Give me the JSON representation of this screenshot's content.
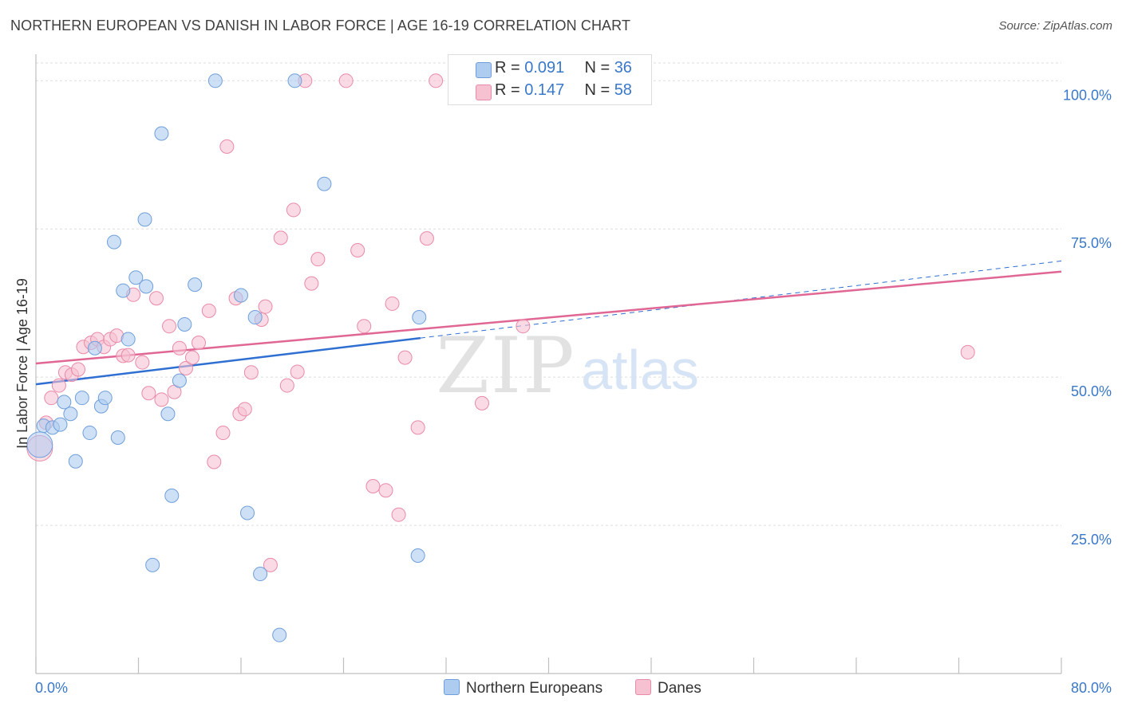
{
  "title": "NORTHERN EUROPEAN VS DANISH IN LABOR FORCE | AGE 16-19 CORRELATION CHART",
  "source": "Source: ZipAtlas.com",
  "watermark": {
    "zip": "ZIP",
    "atlas": "atlas"
  },
  "legend_stats": {
    "r_label": "R =",
    "n_label": "N =",
    "series": [
      {
        "name": "Northern Europeans",
        "r": "0.091",
        "n": "36"
      },
      {
        "name": "Danes",
        "r": "0.147",
        "n": "58"
      }
    ]
  },
  "colors": {
    "blue_fill": "#aecbf0",
    "blue_stroke": "#6f9fda",
    "blue_line": "#2f6fd1",
    "pink_fill": "#f6c2d2",
    "pink_stroke": "#e98aa8",
    "pink_line": "#e06694",
    "tick_label": "#3a78c9",
    "grid": "#dddddd"
  },
  "chart_data": {
    "type": "scatter",
    "xlabel": "",
    "ylabel": "In Labor Force | Age 16-19",
    "xlim": [
      0,
      80
    ],
    "ylim": [
      0,
      103
    ],
    "x_tick_labels": [
      "0.0%",
      "80.0%"
    ],
    "y_ticks": [
      25,
      50,
      75,
      100
    ],
    "y_tick_labels": [
      "25.0%",
      "50.0%",
      "75.0%",
      "100.0%"
    ],
    "series": [
      {
        "name": "Northern Europeans",
        "points": [
          [
            0.6,
            41.8
          ],
          [
            1.3,
            41.5
          ],
          [
            1.9,
            42.0
          ],
          [
            2.2,
            45.8
          ],
          [
            2.7,
            43.8
          ],
          [
            3.1,
            35.8
          ],
          [
            3.6,
            46.5
          ],
          [
            4.2,
            40.6
          ],
          [
            4.6,
            54.9
          ],
          [
            5.1,
            45.1
          ],
          [
            5.4,
            46.5
          ],
          [
            6.1,
            72.8
          ],
          [
            6.4,
            39.8
          ],
          [
            6.8,
            64.6
          ],
          [
            7.2,
            56.4
          ],
          [
            7.8,
            66.8
          ],
          [
            8.5,
            76.6
          ],
          [
            8.6,
            65.3
          ],
          [
            9.1,
            18.3
          ],
          [
            9.8,
            91.1
          ],
          [
            10.3,
            43.8
          ],
          [
            10.6,
            30.0
          ],
          [
            11.2,
            49.4
          ],
          [
            11.6,
            58.9
          ],
          [
            12.4,
            65.6
          ],
          [
            14.0,
            100.0
          ],
          [
            16.0,
            63.8
          ],
          [
            16.5,
            27.1
          ],
          [
            17.1,
            60.1
          ],
          [
            17.5,
            16.8
          ],
          [
            19.0,
            6.5
          ],
          [
            20.2,
            100.0
          ],
          [
            22.5,
            82.6
          ],
          [
            29.8,
            19.9
          ],
          [
            29.9,
            60.1
          ],
          [
            0.3,
            38.6
          ]
        ],
        "trend": {
          "x0": 0,
          "y0": 48.8,
          "x1": 30,
          "y1": 56.6,
          "dash_to_x": 80,
          "dash_to_y": 69.6
        }
      },
      {
        "name": "Danes",
        "points": [
          [
            0.3,
            38.0
          ],
          [
            0.8,
            42.3
          ],
          [
            1.2,
            46.5
          ],
          [
            1.8,
            48.6
          ],
          [
            2.3,
            50.8
          ],
          [
            2.8,
            50.4
          ],
          [
            3.3,
            51.3
          ],
          [
            3.7,
            55.1
          ],
          [
            4.3,
            55.8
          ],
          [
            4.8,
            56.4
          ],
          [
            5.3,
            55.1
          ],
          [
            5.8,
            56.4
          ],
          [
            6.3,
            57.0
          ],
          [
            6.8,
            53.6
          ],
          [
            7.2,
            53.7
          ],
          [
            7.6,
            63.9
          ],
          [
            8.3,
            52.5
          ],
          [
            8.8,
            47.3
          ],
          [
            9.4,
            63.3
          ],
          [
            9.8,
            46.2
          ],
          [
            10.4,
            58.6
          ],
          [
            10.8,
            47.5
          ],
          [
            11.2,
            54.9
          ],
          [
            11.7,
            51.5
          ],
          [
            12.2,
            53.3
          ],
          [
            12.7,
            55.8
          ],
          [
            13.5,
            61.2
          ],
          [
            13.9,
            35.7
          ],
          [
            14.6,
            40.6
          ],
          [
            14.9,
            88.9
          ],
          [
            15.6,
            63.3
          ],
          [
            15.9,
            43.8
          ],
          [
            16.3,
            44.6
          ],
          [
            16.8,
            50.8
          ],
          [
            17.6,
            59.7
          ],
          [
            17.9,
            61.9
          ],
          [
            18.3,
            18.3
          ],
          [
            19.1,
            73.5
          ],
          [
            19.6,
            48.6
          ],
          [
            20.1,
            78.2
          ],
          [
            20.4,
            50.9
          ],
          [
            21.0,
            100.0
          ],
          [
            21.5,
            65.8
          ],
          [
            22.0,
            69.9
          ],
          [
            24.2,
            100.0
          ],
          [
            25.1,
            71.4
          ],
          [
            25.6,
            58.6
          ],
          [
            26.3,
            31.6
          ],
          [
            27.3,
            30.9
          ],
          [
            27.8,
            62.4
          ],
          [
            28.3,
            26.8
          ],
          [
            28.8,
            53.3
          ],
          [
            29.8,
            41.5
          ],
          [
            30.5,
            73.4
          ],
          [
            31.2,
            100.0
          ],
          [
            34.8,
            45.6
          ],
          [
            38.0,
            58.6
          ],
          [
            72.7,
            54.2
          ]
        ],
        "trend": {
          "x0": 0,
          "y0": 52.3,
          "x1": 80,
          "y1": 67.8
        }
      }
    ]
  }
}
